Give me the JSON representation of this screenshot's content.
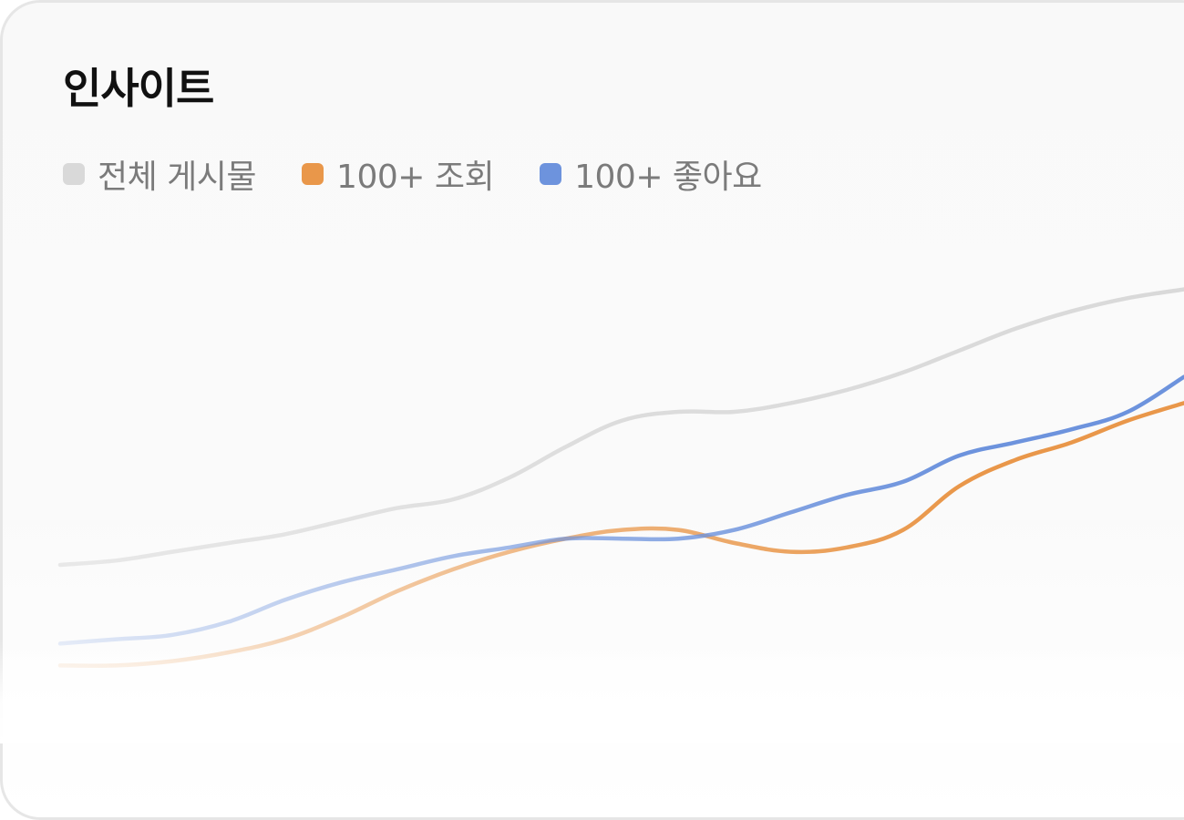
{
  "card": {
    "title": "인사이트"
  },
  "chart_data": {
    "type": "line",
    "title": "인사이트",
    "xlabel": "",
    "ylabel": "",
    "grid": false,
    "legend_position": "top-left",
    "x": [
      0,
      1,
      2,
      3,
      4,
      5,
      6,
      7,
      8,
      9,
      10,
      11,
      12,
      13,
      14,
      15,
      16,
      17,
      18,
      19,
      20
    ],
    "ylim": [
      0,
      100
    ],
    "series": [
      {
        "name": "전체 게시물",
        "color": "#d9d9d9",
        "values": [
          25,
          26,
          28,
          30,
          32,
          35,
          38,
          40,
          45,
          52,
          58,
          60,
          60,
          62,
          65,
          69,
          74,
          79,
          83,
          86,
          88
        ]
      },
      {
        "name": "100+ 조회",
        "color": "#e9974a",
        "values": [
          2,
          2,
          3,
          5,
          8,
          13,
          19,
          24,
          28,
          31,
          33,
          33,
          30,
          28,
          29,
          33,
          43,
          49,
          53,
          58,
          62
        ]
      },
      {
        "name": "100+ 좋아요",
        "color": "#6d93dd",
        "values": [
          7,
          8,
          9,
          12,
          17,
          21,
          24,
          27,
          29,
          31,
          31,
          31,
          33,
          37,
          41,
          44,
          50,
          53,
          56,
          60,
          68
        ]
      }
    ]
  }
}
